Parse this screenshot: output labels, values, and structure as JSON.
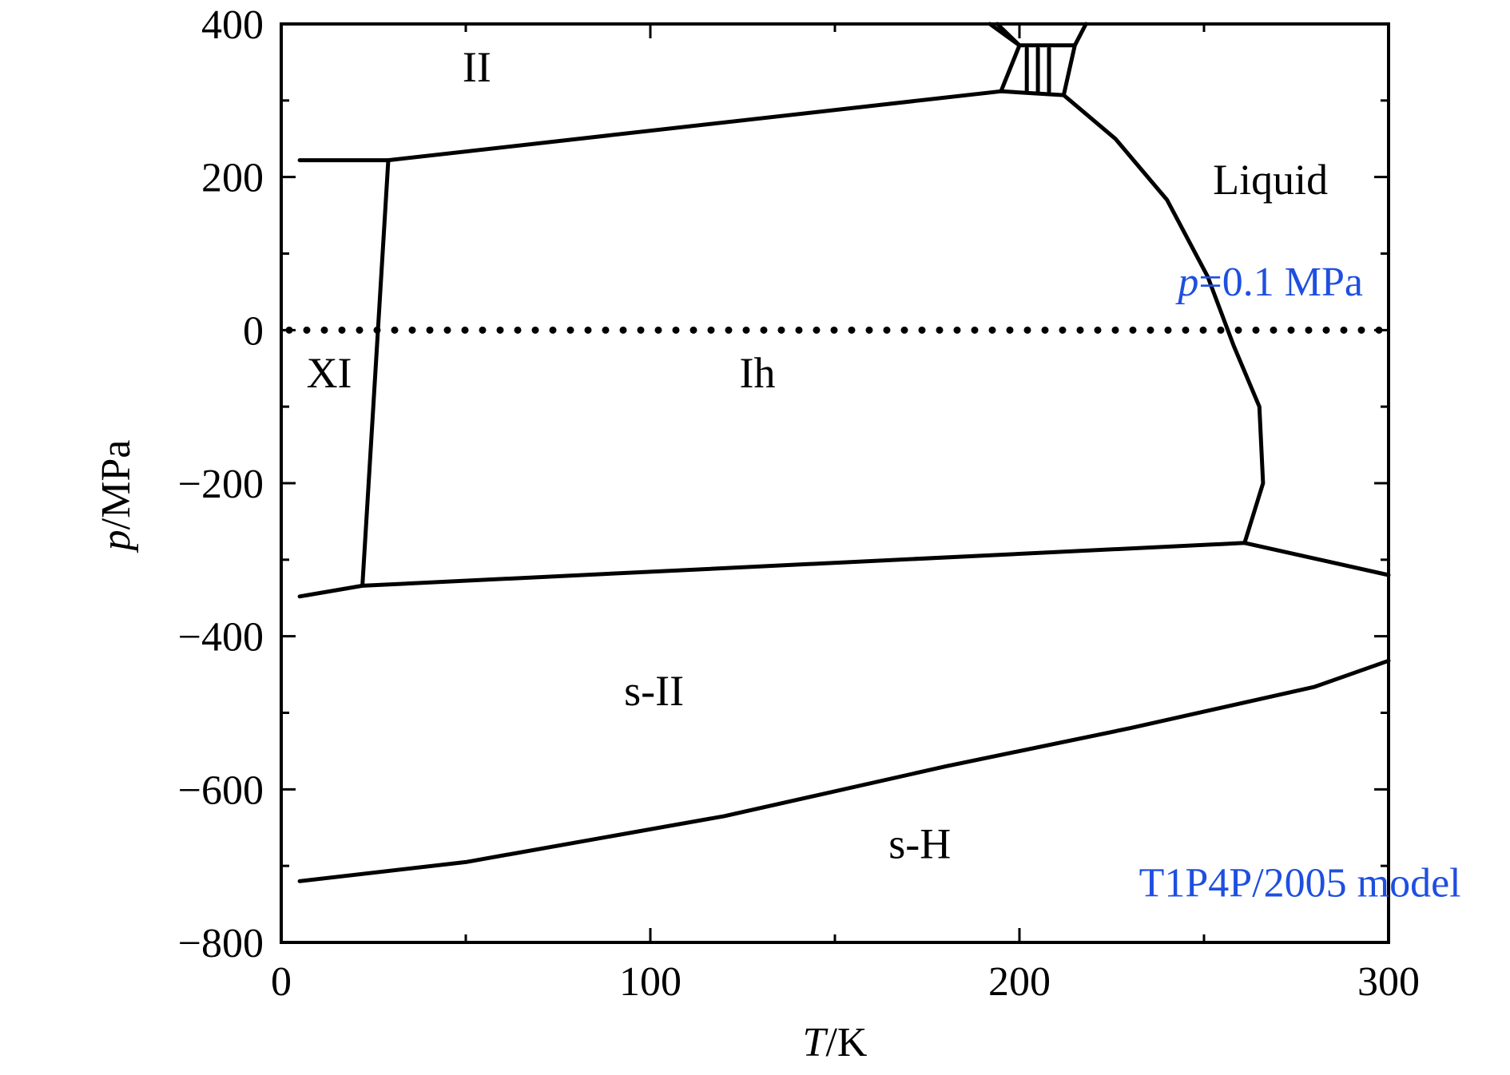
{
  "chart_data": {
    "type": "line",
    "title": "",
    "xlabel_italic": "T",
    "xlabel_rest": "/K",
    "ylabel_italic": "p",
    "ylabel_rest": "/MPa",
    "xlim": [
      0,
      300
    ],
    "ylim": [
      -800,
      400
    ],
    "x_ticks": [
      0,
      100,
      200,
      300
    ],
    "x_tick_labels": [
      "0",
      "100",
      "200",
      "300"
    ],
    "y_ticks": [
      400,
      200,
      0,
      -200,
      -400,
      -600,
      -800
    ],
    "y_tick_labels": [
      "400",
      "200",
      "0",
      "−200",
      "−400",
      "−600",
      "−800"
    ],
    "grid": false,
    "boundaries": [
      {
        "points": [
          [
            5,
            222
          ],
          [
            29,
            222
          ]
        ]
      },
      {
        "points": [
          [
            29,
            222
          ],
          [
            195,
            312
          ],
          [
            212,
            307
          ]
        ]
      },
      {
        "points": [
          [
            29,
            222
          ],
          [
            22,
            -334
          ]
        ]
      },
      {
        "points": [
          [
            5,
            -348
          ],
          [
            22,
            -334
          ],
          [
            261,
            -278
          ]
        ]
      },
      {
        "points": [
          [
            212,
            307
          ],
          [
            226,
            250
          ],
          [
            240,
            170
          ],
          [
            251,
            70
          ],
          [
            258,
            -20
          ],
          [
            265,
            -100
          ],
          [
            266,
            -200
          ],
          [
            261,
            -278
          ]
        ]
      },
      {
        "points": [
          [
            261,
            -278
          ],
          [
            300,
            -320
          ]
        ]
      },
      {
        "points": [
          [
            5,
            -720
          ],
          [
            50,
            -695
          ],
          [
            120,
            -635
          ],
          [
            180,
            -570
          ],
          [
            230,
            -520
          ],
          [
            280,
            -466
          ],
          [
            300,
            -432
          ]
        ]
      },
      {
        "points": [
          [
            195,
            312
          ],
          [
            200,
            372
          ],
          [
            215,
            372
          ],
          [
            212,
            307
          ]
        ]
      },
      {
        "points": [
          [
            200,
            372
          ],
          [
            194,
            400
          ]
        ]
      },
      {
        "points": [
          [
            200,
            372
          ],
          [
            192,
            400
          ]
        ]
      },
      {
        "points": [
          [
            215,
            372
          ],
          [
            218,
            400
          ]
        ]
      },
      {
        "points": [
          [
            202,
            368
          ],
          [
            202,
            312
          ]
        ]
      },
      {
        "points": [
          [
            205,
            368
          ],
          [
            205,
            312
          ]
        ]
      },
      {
        "points": [
          [
            208,
            368
          ],
          [
            208,
            312
          ]
        ]
      }
    ],
    "reference_line": {
      "p": 0,
      "style": "dotted"
    },
    "region_labels": [
      {
        "text": "II",
        "x": 53,
        "y": 325
      },
      {
        "text": "Liquid",
        "x": 268,
        "y": 178
      },
      {
        "text": "XI",
        "x": 13,
        "y": -75
      },
      {
        "text": "Ih",
        "x": 129,
        "y": -75
      },
      {
        "text": "s-II",
        "x": 101,
        "y": -490
      },
      {
        "text": "s-H",
        "x": 173,
        "y": -690
      }
    ],
    "annotations": [
      {
        "italic": "p",
        "rest": "=0.1 MPa",
        "x": 268,
        "y": 45,
        "color": "#1f4fe0"
      },
      {
        "italic": "",
        "rest": "T1P4P/2005 model",
        "x": 276,
        "y": -740,
        "color": "#1f4fe0"
      }
    ]
  }
}
